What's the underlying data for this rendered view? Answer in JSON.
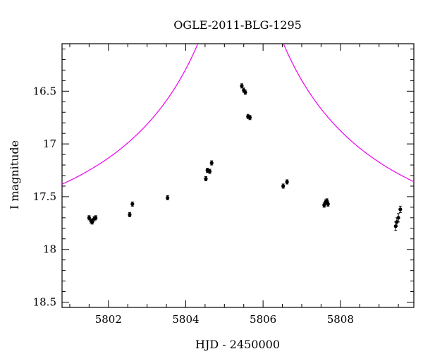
{
  "chart_data": {
    "type": "scatter",
    "title": "OGLE-2011-BLG-1295",
    "xlabel": "HJD - 2450000",
    "ylabel": "I magnitude",
    "xlim": [
      5800.8,
      5809.9
    ],
    "ylim": [
      18.55,
      16.05
    ],
    "y_inverted": true,
    "grid": false,
    "legend": "none",
    "x_ticks": [
      5802,
      5804,
      5806,
      5808
    ],
    "y_ticks": [
      16.5,
      17,
      17.5,
      18,
      18.5
    ],
    "x_tick_labels": [
      "5802",
      "5804",
      "5806",
      "5808"
    ],
    "y_tick_labels": [
      "16.5",
      "17",
      "17.5",
      "18",
      "18.5"
    ],
    "series": [
      {
        "kind": "points",
        "color": "#000000",
        "points": [
          {
            "x": 5801.5,
            "y": 17.7,
            "err": 0.02
          },
          {
            "x": 5801.55,
            "y": 17.73,
            "err": 0.02
          },
          {
            "x": 5801.58,
            "y": 17.74,
            "err": 0.02
          },
          {
            "x": 5801.63,
            "y": 17.71,
            "err": 0.02
          },
          {
            "x": 5801.67,
            "y": 17.7,
            "err": 0.02
          },
          {
            "x": 5802.55,
            "y": 17.67,
            "err": 0.02
          },
          {
            "x": 5802.62,
            "y": 17.57,
            "err": 0.02
          },
          {
            "x": 5803.53,
            "y": 17.51,
            "err": 0.015
          },
          {
            "x": 5804.52,
            "y": 17.33,
            "err": 0.015
          },
          {
            "x": 5804.56,
            "y": 17.25,
            "err": 0.015
          },
          {
            "x": 5804.62,
            "y": 17.26,
            "err": 0.015
          },
          {
            "x": 5804.67,
            "y": 17.18,
            "err": 0.015
          },
          {
            "x": 5805.45,
            "y": 16.45,
            "err": 0.01
          },
          {
            "x": 5805.5,
            "y": 16.49,
            "err": 0.01
          },
          {
            "x": 5805.54,
            "y": 16.51,
            "err": 0.01
          },
          {
            "x": 5805.61,
            "y": 16.74,
            "err": 0.01
          },
          {
            "x": 5805.66,
            "y": 16.75,
            "err": 0.01
          },
          {
            "x": 5806.52,
            "y": 17.4,
            "err": 0.015
          },
          {
            "x": 5806.62,
            "y": 17.36,
            "err": 0.015
          },
          {
            "x": 5807.58,
            "y": 17.58,
            "err": 0.02
          },
          {
            "x": 5807.62,
            "y": 17.55,
            "err": 0.02
          },
          {
            "x": 5807.65,
            "y": 17.54,
            "err": 0.02
          },
          {
            "x": 5807.68,
            "y": 17.57,
            "err": 0.02
          },
          {
            "x": 5809.43,
            "y": 17.78,
            "err": 0.04
          },
          {
            "x": 5809.46,
            "y": 17.74,
            "err": 0.04
          },
          {
            "x": 5809.5,
            "y": 17.7,
            "err": 0.04
          },
          {
            "x": 5809.55,
            "y": 17.62,
            "err": 0.03
          }
        ]
      },
      {
        "kind": "model-curve",
        "color": "#ee00ee",
        "t0": 5805.42,
        "u0": 0.055,
        "tE": 6.5,
        "baseline_mag": 17.93
      }
    ]
  }
}
